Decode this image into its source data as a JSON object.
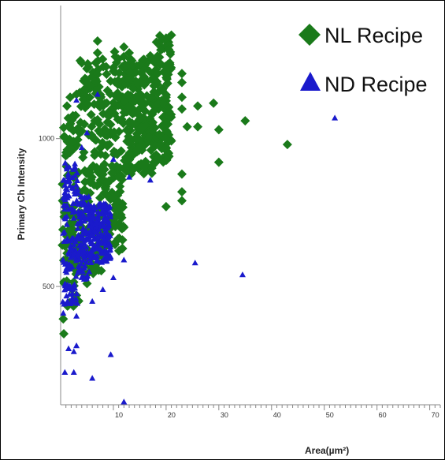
{
  "chart_data": {
    "type": "scatter",
    "xlabel": "Area(µm²)",
    "ylabel": "Primary Ch Intensity",
    "xlim": [
      0,
      72
    ],
    "ylim": [
      100,
      1450
    ],
    "x_ticks": [
      10,
      20,
      30,
      40,
      50,
      60,
      70
    ],
    "y_ticks": [
      500,
      1000
    ],
    "legend_position": "top-right",
    "series": [
      {
        "name": "NL Recipe",
        "marker": "diamond",
        "color": "#1a7a1a",
        "bands": [
          {
            "x": [
              0.3,
              3.5
            ],
            "y": [
              430,
              1080
            ]
          },
          {
            "x": [
              3.5,
              8.5
            ],
            "y": [
              540,
              1270
            ]
          },
          {
            "x": [
              8.5,
              12
            ],
            "y": [
              620,
              1300
            ]
          },
          {
            "x": [
              12,
              18
            ],
            "y": [
              880,
              1280
            ]
          },
          {
            "x": [
              18,
              21
            ],
            "y": [
              920,
              1350
            ]
          }
        ],
        "points": [
          [
            0.5,
            390
          ],
          [
            0.6,
            340
          ],
          [
            1.2,
            1110
          ],
          [
            1.8,
            1140
          ],
          [
            3,
            1150
          ],
          [
            5,
            1190
          ],
          [
            7,
            1330
          ],
          [
            7,
            1290
          ],
          [
            10,
            1240
          ],
          [
            12,
            1310
          ],
          [
            13,
            1290
          ],
          [
            15,
            1250
          ],
          [
            17,
            1280
          ],
          [
            19,
            1300
          ],
          [
            20,
            1340
          ],
          [
            21,
            1350
          ],
          [
            20,
            1140
          ],
          [
            20,
            1000
          ],
          [
            20,
            970
          ],
          [
            20,
            770
          ],
          [
            23,
            1220
          ],
          [
            23,
            1190
          ],
          [
            23,
            1140
          ],
          [
            23,
            1100
          ],
          [
            23,
            880
          ],
          [
            23,
            820
          ],
          [
            23,
            790
          ],
          [
            24,
            1040
          ],
          [
            26,
            1110
          ],
          [
            26,
            1040
          ],
          [
            29,
            1120
          ],
          [
            30,
            1030
          ],
          [
            30,
            920
          ],
          [
            35,
            1060
          ],
          [
            43,
            980
          ],
          [
            12,
            700
          ],
          [
            10,
            720
          ],
          [
            8,
            600
          ],
          [
            6,
            560
          ],
          [
            5,
            510
          ],
          [
            3,
            470
          ],
          [
            9,
            650
          ],
          [
            11,
            760
          ]
        ]
      },
      {
        "name": "ND Recipe",
        "marker": "triangle",
        "color": "#1a1acc",
        "bands": [
          {
            "x": [
              0.4,
              3.2
            ],
            "y": [
              440,
              920
            ]
          },
          {
            "x": [
              3.2,
              5.5
            ],
            "y": [
              520,
              820
            ]
          },
          {
            "x": [
              5.5,
              9.5
            ],
            "y": [
              580,
              780
            ]
          }
        ],
        "points": [
          [
            0.5,
            410
          ],
          [
            1.5,
            290
          ],
          [
            2.5,
            280
          ],
          [
            3,
            300
          ],
          [
            0.8,
            210
          ],
          [
            2.5,
            210
          ],
          [
            6,
            190
          ],
          [
            9.5,
            270
          ],
          [
            12,
            110
          ],
          [
            7,
            1150
          ],
          [
            10,
            930
          ],
          [
            13,
            870
          ],
          [
            17,
            860
          ],
          [
            12,
            590
          ],
          [
            10,
            530
          ],
          [
            8,
            490
          ],
          [
            6,
            450
          ],
          [
            3,
            400
          ],
          [
            25.5,
            580
          ],
          [
            34.5,
            540
          ],
          [
            52,
            1070
          ],
          [
            5,
            1020
          ],
          [
            3,
            1130
          ],
          [
            4,
            970
          ]
        ]
      }
    ]
  }
}
